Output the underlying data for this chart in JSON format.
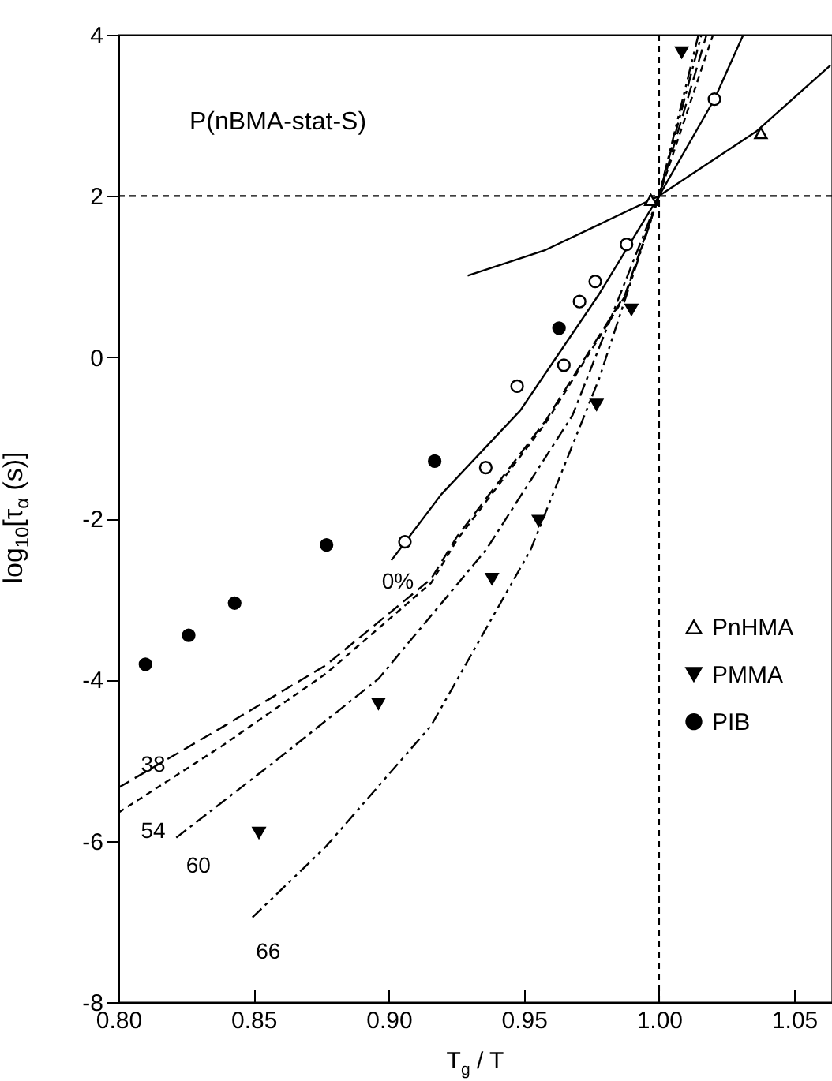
{
  "chart_data": {
    "type": "scatter",
    "xlabel": "T$_{g}$ / T",
    "ylabel": "log$_{10}$[τ$_{α}$ (s)]",
    "annotations": [
      "P(nBMA-stat-S)"
    ],
    "xlim": [
      0.8,
      1.064
    ],
    "ylim": [
      -8,
      4
    ],
    "xticks": [
      {
        "value": 0.8,
        "label": "0.80"
      },
      {
        "value": 0.85,
        "label": "0.85"
      },
      {
        "value": 0.9,
        "label": "0.90"
      },
      {
        "value": 0.95,
        "label": "0.95"
      },
      {
        "value": 1.0,
        "label": "1.00"
      },
      {
        "value": 1.05,
        "label": "1.05"
      }
    ],
    "yticks": [
      -8,
      -6,
      -4,
      -2,
      0,
      2,
      4
    ],
    "legend": "right",
    "grid": false,
    "ref_lines": [
      {
        "axis": "x",
        "value": 1.0,
        "line_style": "dotted",
        "color": "#000000"
      },
      {
        "axis": "y",
        "value": 2,
        "line_style": "dotted",
        "color": "#000000"
      }
    ],
    "series": [
      {
        "type": "line",
        "color": "#000000",
        "line_style": "solid",
        "x": [
          0.9292,
          0.958,
          1.0,
          1.036,
          1.0634
        ],
        "values": [
          1.01,
          1.33,
          2,
          2.8,
          3.62
        ]
      },
      {
        "type": "line",
        "name": "0%",
        "color": "#000000",
        "line_style": "solid",
        "x": [
          0.901,
          0.9195,
          0.9487,
          0.9778,
          1.0,
          1.0205,
          1.0312
        ],
        "values": [
          -2.52,
          -1.7,
          -0.66,
          0.78,
          2,
          3.2,
          4.0
        ]
      },
      {
        "type": "line",
        "name": "38",
        "color": "#000000",
        "line_style": "dashed",
        "x": [
          0.8,
          0.8379,
          0.8768,
          0.9157,
          0.9254,
          0.958,
          0.9875,
          1.0,
          1.0176
        ],
        "values": [
          -5.34,
          -4.6,
          -3.82,
          -2.75,
          -2.22,
          -0.79,
          0.78,
          2,
          4
        ]
      },
      {
        "type": "line",
        "name": "54",
        "color": "#000000",
        "line_style": "dotted",
        "x": [
          0.8,
          0.838,
          0.877,
          0.9157,
          0.9254,
          0.958,
          0.9875,
          1.0,
          1.02
        ],
        "values": [
          -5.65,
          -4.83,
          -3.92,
          -2.8,
          -2.26,
          -0.82,
          0.76,
          2,
          4
        ]
      },
      {
        "type": "line",
        "name": "60",
        "color": "#000000",
        "line_style": "dashdot",
        "x": [
          0.8214,
          0.8573,
          0.8962,
          0.936,
          0.968,
          1.0,
          1.0157
        ],
        "values": [
          -5.96,
          -5.03,
          -3.99,
          -2.39,
          -0.72,
          2,
          4
        ]
      },
      {
        "type": "line",
        "name": "66",
        "color": "#000000",
        "line_style": "dashdotdot",
        "x": [
          0.8496,
          0.8768,
          0.9157,
          0.9525,
          0.9778,
          1.0,
          1.0146
        ],
        "values": [
          -6.95,
          -6.07,
          -4.57,
          -2.39,
          -0.27,
          2,
          4
        ]
      },
      {
        "color": "#000000",
        "marker": "circle-open",
        "x": [
          0.906,
          0.9359,
          0.9475,
          0.9648,
          0.9706,
          0.9764,
          0.988,
          1.0205
        ],
        "values": [
          -2.29,
          -1.37,
          -0.36,
          -0.1,
          0.69,
          0.94,
          1.4,
          3.2
        ]
      },
      {
        "name": "PnHMA",
        "color": "#000000",
        "marker": "triangle-open",
        "x": [
          0.997,
          1.0377
        ],
        "values": [
          1.95,
          2.78
        ]
      },
      {
        "name": "PMMA",
        "color": "#000000",
        "marker": "triangle-down",
        "x": [
          0.852,
          0.8962,
          0.9382,
          0.9555,
          0.9769,
          0.9898,
          1.0084
        ],
        "values": [
          -5.9,
          -4.3,
          -2.75,
          -2.03,
          -0.59,
          0.59,
          3.78
        ]
      },
      {
        "name": "PIB",
        "color": "#000000",
        "marker": "circle",
        "x": [
          0.81,
          0.826,
          0.843,
          0.877,
          0.917,
          0.963
        ],
        "values": [
          -3.81,
          -3.45,
          -3.05,
          -2.33,
          -1.29,
          0.36
        ]
      }
    ]
  }
}
